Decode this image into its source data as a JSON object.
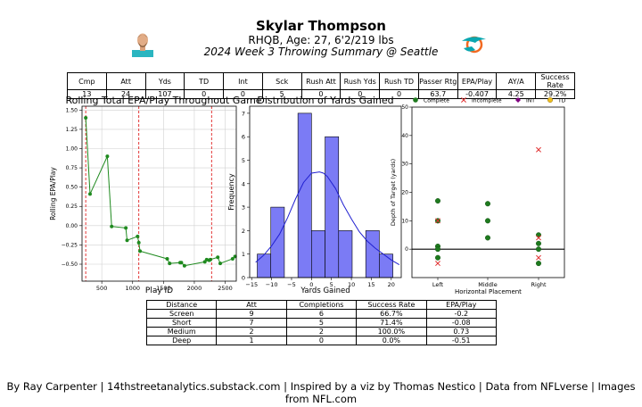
{
  "header": {
    "player_name": "Skylar Thompson",
    "player_info": "RHQB, Age: 27, 6'2/219 lbs",
    "game_summary": "2024 Week 3 Throwing Summary @ Seattle",
    "headshot_icon": "player-headshot",
    "team_logo_icon": "dolphins-logo"
  },
  "stats_table": {
    "headers": [
      "Cmp",
      "Att",
      "Yds",
      "TD",
      "Int",
      "Sck",
      "Rush Att",
      "Rush Yds",
      "Rush TD",
      "Passer Rtg",
      "EPA/Play",
      "AY/A",
      "Success Rate"
    ],
    "values": [
      "13",
      "24",
      "107",
      "0",
      "0",
      "5",
      "0",
      "0",
      "0",
      "63.7",
      "-0.407",
      "4.25",
      "29.2%"
    ]
  },
  "distance_table": {
    "headers": [
      "Distance",
      "Att",
      "Completions",
      "Success Rate",
      "EPA/Play"
    ],
    "rows": [
      [
        "Screen",
        "9",
        "6",
        "66.7%",
        "-0.2"
      ],
      [
        "Short",
        "7",
        "5",
        "71.4%",
        "-0.08"
      ],
      [
        "Medium",
        "2",
        "2",
        "100.0%",
        "0.73"
      ],
      [
        "Deep",
        "1",
        "0",
        "0.0%",
        "-0.51"
      ]
    ]
  },
  "footer": "By Ray Carpenter | 14thstreetanalytics.substack.com | Inspired by a viz by Thomas Nestico | Data from NFLverse | Images from NFL.com",
  "colors": {
    "line": "#1f8a1f",
    "vline": "#e02020",
    "bar": "#7b7bf5",
    "kde": "#2020d0",
    "complete": "#1e7a1e",
    "incomplete": "#e03030",
    "int": "#800080",
    "td": "#f0c020",
    "logo_aqua": "#0aa7b0",
    "logo_orange": "#f26a21"
  },
  "chart_data": [
    {
      "type": "line",
      "title": "Rolling Total EPA/Play Throughout Game",
      "xlabel": "Play ID",
      "ylabel": "Rolling EPA/Play",
      "xlim": [
        180,
        2680
      ],
      "ylim": [
        -0.72,
        1.55
      ],
      "xticks": [
        500,
        1000,
        1500,
        2000,
        2500
      ],
      "yticks": [
        -0.5,
        -0.25,
        0.0,
        0.25,
        0.5,
        0.75,
        1.0,
        1.25,
        1.5
      ],
      "ytick_labels": [
        "−0.50",
        "−0.25",
        "0.00",
        "0.25",
        "0.50",
        "0.75",
        "1.00",
        "1.25",
        "1.50"
      ],
      "quarter_lines": [
        240,
        1100,
        2280
      ],
      "x": [
        240,
        310,
        590,
        660,
        890,
        910,
        1080,
        1100,
        1120,
        1560,
        1600,
        1770,
        1790,
        1840,
        2170,
        2200,
        2240,
        2260,
        2380,
        2420,
        2620,
        2660
      ],
      "y": [
        1.4,
        0.41,
        0.9,
        -0.01,
        -0.03,
        -0.19,
        -0.14,
        -0.22,
        -0.33,
        -0.43,
        -0.49,
        -0.48,
        -0.48,
        -0.52,
        -0.47,
        -0.44,
        -0.45,
        -0.44,
        -0.41,
        -0.49,
        -0.43,
        -0.4
      ],
      "grid": true
    },
    {
      "type": "bar",
      "title": "Distribution of Yards Gained",
      "xlabel": "Yards Gained",
      "ylabel": "Frequency",
      "xlim": [
        -15.5,
        22.5
      ],
      "ylim": [
        0,
        7.3
      ],
      "xticks": [
        -15,
        -10,
        -5,
        0,
        5,
        10,
        15,
        20
      ],
      "xtick_labels": [
        "−15",
        "−10",
        "−5",
        "0",
        "5",
        "10",
        "15",
        "20"
      ],
      "yticks": [
        0,
        1,
        2,
        3,
        4,
        5,
        6,
        7
      ],
      "bin_width": 3.4,
      "bin_starts": [
        -13.6,
        -10.2,
        -6.8,
        -3.4,
        0.0,
        3.4,
        6.8,
        10.2,
        13.6,
        17.0
      ],
      "values": [
        1,
        3,
        0,
        7,
        2,
        6,
        2,
        0,
        2,
        1
      ],
      "kde_x": [
        -14,
        -12,
        -10,
        -8,
        -6,
        -4,
        -2,
        0,
        2,
        3,
        4,
        6,
        8,
        10,
        12,
        14,
        16,
        18,
        20,
        22
      ],
      "kde_y": [
        0.65,
        0.95,
        1.35,
        1.85,
        2.55,
        3.35,
        4.05,
        4.45,
        4.5,
        4.45,
        4.3,
        3.8,
        3.1,
        2.5,
        1.95,
        1.55,
        1.25,
        1.0,
        0.75,
        0.55
      ]
    },
    {
      "type": "scatter",
      "xlabel": "Horizontal Placement",
      "ylabel": "Depth of Target (yards)",
      "categories": [
        "Left",
        "Middle",
        "Right"
      ],
      "ylim": [
        -10,
        50
      ],
      "yticks": [
        0,
        10,
        20,
        30,
        40,
        50
      ],
      "legend": [
        "Complete",
        "Incomplete",
        "INT",
        "TD"
      ],
      "legend_position": "top",
      "zero_line": true,
      "complete": [
        {
          "x": "Left",
          "y": 17
        },
        {
          "x": "Left",
          "y": 10
        },
        {
          "x": "Left",
          "y": 1
        },
        {
          "x": "Left",
          "y": 0
        },
        {
          "x": "Left",
          "y": -3
        },
        {
          "x": "Middle",
          "y": 16
        },
        {
          "x": "Middle",
          "y": 10
        },
        {
          "x": "Middle",
          "y": 4
        },
        {
          "x": "Right",
          "y": 5
        },
        {
          "x": "Right",
          "y": 2
        },
        {
          "x": "Right",
          "y": 0
        },
        {
          "x": "Right",
          "y": -5
        }
      ],
      "incomplete": [
        {
          "x": "Left",
          "y": 10
        },
        {
          "x": "Left",
          "y": -5
        },
        {
          "x": "Right",
          "y": 35
        },
        {
          "x": "Right",
          "y": 4
        },
        {
          "x": "Right",
          "y": -3
        }
      ]
    }
  ]
}
